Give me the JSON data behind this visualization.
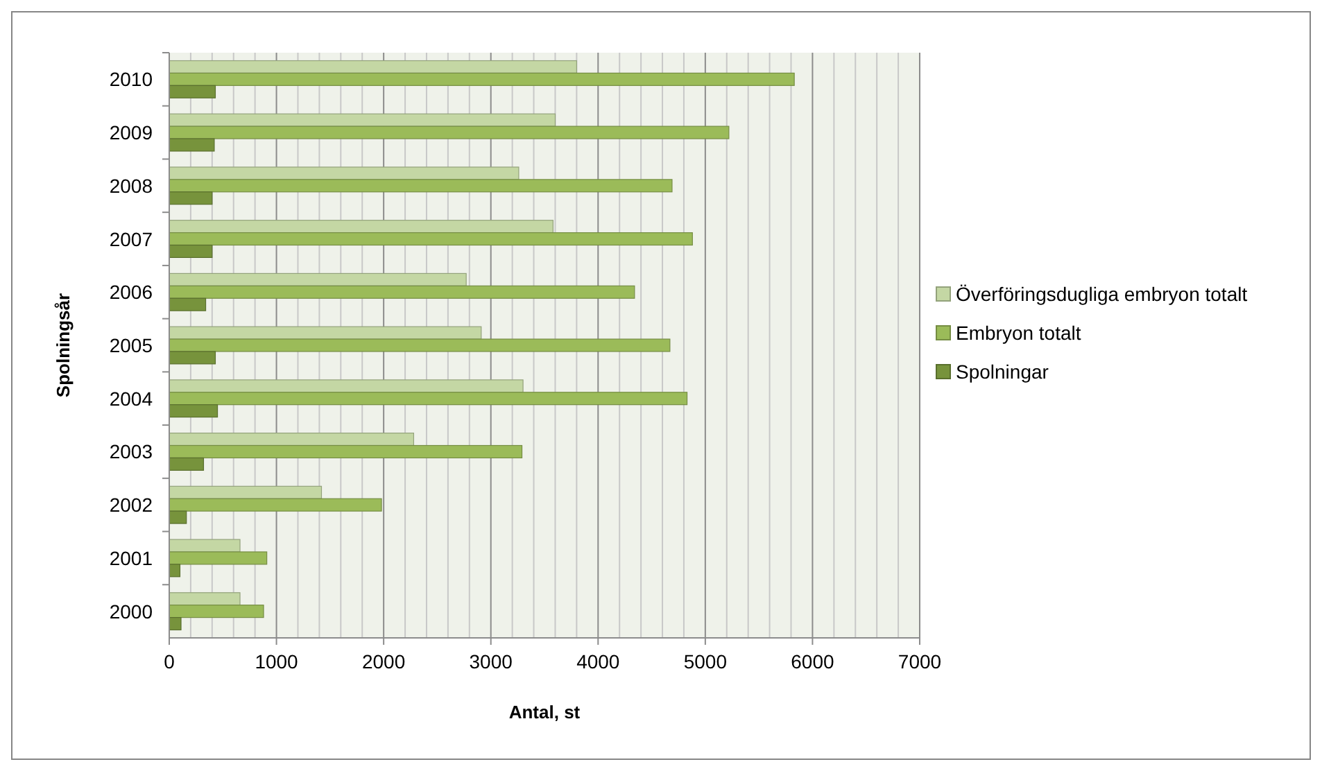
{
  "chart_data": {
    "type": "bar",
    "orientation": "horizontal",
    "xlabel": "Antal, st",
    "ylabel": "Spolningsår",
    "categories": [
      "2010",
      "2009",
      "2008",
      "2007",
      "2006",
      "2005",
      "2004",
      "2003",
      "2002",
      "2001",
      "2000"
    ],
    "series": [
      {
        "name": "Överföringsdugliga embryon totalt",
        "color": "#c4d7a4",
        "values": [
          3800,
          3600,
          3260,
          3580,
          2770,
          2910,
          3300,
          2280,
          1420,
          660,
          660
        ]
      },
      {
        "name": "Embryon totalt",
        "color": "#9bbb59",
        "values": [
          5830,
          5220,
          4690,
          4880,
          4340,
          4670,
          4830,
          3290,
          1980,
          910,
          880
        ]
      },
      {
        "name": "Spolningar",
        "color": "#77933c",
        "values": [
          430,
          420,
          400,
          400,
          340,
          430,
          450,
          320,
          160,
          100,
          110
        ]
      }
    ],
    "xlim": [
      0,
      7000
    ],
    "xticks": [
      0,
      1000,
      2000,
      3000,
      4000,
      5000,
      6000,
      7000
    ],
    "grid": "x",
    "legend": "right"
  }
}
